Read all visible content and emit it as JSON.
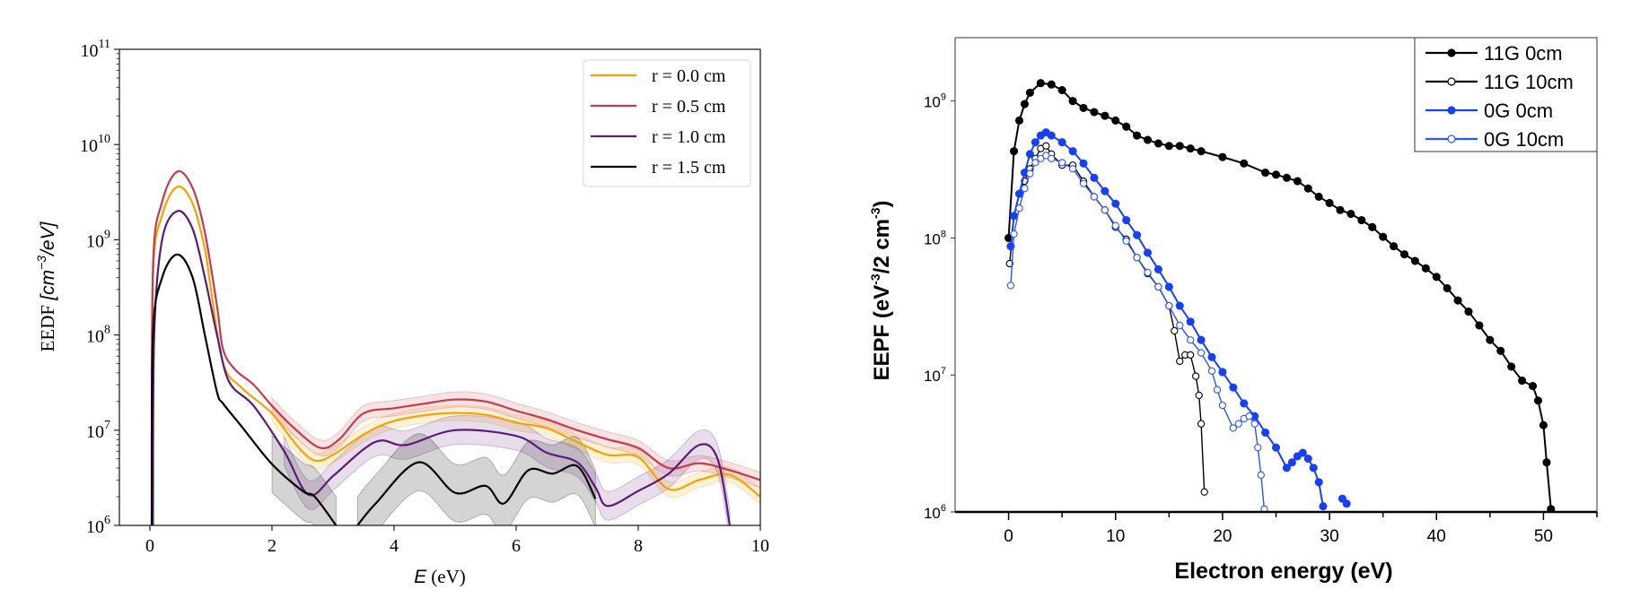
{
  "chart_data": [
    {
      "type": "line",
      "xlabel": "E (eV)",
      "xlabel_italic_part": "E",
      "xlabel_unit": "(eV)",
      "ylabel": "EEDF [cm^-3/eV]",
      "ylabel_text": "EEDF ",
      "ylabel_math_pre": "[cm",
      "ylabel_math_exp": "−3",
      "ylabel_math_post": "/eV]",
      "xlim": [
        -0.5,
        10
      ],
      "ylim": [
        1000000.0,
        100000000000.0
      ],
      "yscale": "log",
      "grid": false,
      "legend_position": "top-right",
      "x_ticks": [
        "0",
        "2",
        "4",
        "6",
        "8",
        "10"
      ],
      "y_ticks": [
        {
          "base": "10",
          "exp": "6"
        },
        {
          "base": "10",
          "exp": "7"
        },
        {
          "base": "10",
          "exp": "8"
        },
        {
          "base": "10",
          "exp": "9"
        },
        {
          "base": "10",
          "exp": "10"
        },
        {
          "base": "10",
          "exp": "11"
        }
      ],
      "band_from_E": 2,
      "series": [
        {
          "name": "r = 0.0 cm",
          "color": "#f5a300",
          "band_decades": 0.08,
          "x": [
            0.03,
            0.05,
            0.2,
            0.45,
            0.7,
            0.9,
            1.0,
            1.2,
            1.5,
            2,
            2.4,
            2.7,
            3.0,
            3.5,
            4,
            4.8,
            5.5,
            6,
            6.5,
            7,
            7.5,
            8,
            8.5,
            9,
            9.5,
            10
          ],
          "y": [
            1000000.0,
            400000000.0,
            1800000000.0,
            3600000000.0,
            2400000000.0,
            800000000.0,
            300000000.0,
            50000000.0,
            28000000.0,
            15000000.0,
            7000000.0,
            4800000.0,
            5500000.0,
            9000000.0,
            12500000.0,
            15000000.0,
            14500000.0,
            12000000.0,
            10500000.0,
            7500000.0,
            5500000.0,
            5200000.0,
            2400000.0,
            3000000.0,
            3400000.0,
            2000000.0
          ]
        },
        {
          "name": "r = 0.5 cm",
          "color": "#c83a4b",
          "band_decades": 0.08,
          "x": [
            0.03,
            0.05,
            0.2,
            0.45,
            0.7,
            0.9,
            1.1,
            1.2,
            1.4,
            1.7,
            2,
            2.4,
            2.8,
            3.1,
            3.5,
            4,
            4.5,
            5,
            5.5,
            6,
            6.5,
            7,
            7.5,
            8,
            8.5,
            9,
            9.5,
            10
          ],
          "y": [
            1000000.0,
            500000000.0,
            2500000000.0,
            5200000000.0,
            3500000000.0,
            1200000000.0,
            200000000.0,
            70000000.0,
            43000000.0,
            30000000.0,
            18000000.0,
            10000000.0,
            6500000.0,
            8000000.0,
            15000000.0,
            17000000.0,
            19000000.0,
            21000000.0,
            20000000.0,
            16000000.0,
            13000000.0,
            10000000.0,
            8000000.0,
            6500000.0,
            4000000.0,
            4500000.0,
            3800000.0,
            3000000.0
          ]
        },
        {
          "name": "r = 1.0 cm",
          "color": "#5b1a78",
          "band_decades": 0.15,
          "x": [
            0.05,
            0.07,
            0.2,
            0.45,
            0.7,
            0.9,
            1.1,
            1.3,
            1.7,
            2.2,
            2.6,
            3,
            3.5,
            3.8,
            4.2,
            5,
            6,
            6.5,
            7,
            7.3,
            7.5,
            8,
            8.5,
            9,
            9.3,
            9.5
          ],
          "y": [
            1000000.0,
            100000000.0,
            1000000000.0,
            2000000000.0,
            1300000000.0,
            400000000.0,
            100000000.0,
            32000000.0,
            18000000.0,
            6000000.0,
            2100000.0,
            3300000.0,
            6300000.0,
            7800000.0,
            7000000.0,
            10000000.0,
            8700000.0,
            5800000.0,
            4600000.0,
            2500000.0,
            1600000.0,
            2300000.0,
            3500000.0,
            7000000.0,
            5000000.0,
            1000000.0
          ]
        },
        {
          "name": "r = 1.5 cm",
          "color": "#000000",
          "band_decades": 0.3,
          "x": [
            0.03,
            0.05,
            0.2,
            0.45,
            0.7,
            0.9,
            1.1,
            1.2,
            1.5,
            2,
            2.5,
            2.7,
            3.05,
            null,
            3.4,
            3.7,
            4.4,
            5,
            5.5,
            5.8,
            6.2,
            6.6,
            7,
            7.3
          ],
          "y": [
            1000000.0,
            100000000.0,
            400000000.0,
            700000000.0,
            400000000.0,
            100000000.0,
            25000000.0,
            19000000.0,
            11000000.0,
            4400000.0,
            2300000.0,
            2000000.0,
            1000000.0,
            null,
            1000000.0,
            1700000.0,
            4600000.0,
            2200000.0,
            2600000.0,
            1700000.0,
            3800000.0,
            3500000.0,
            4200000.0,
            1900000.0
          ]
        }
      ]
    },
    {
      "type": "line",
      "xlabel": "Electron energy (eV)",
      "ylabel": "EEPF (eV-3/2 cm-3)",
      "ylabel_pre": "EEPF (eV",
      "ylabel_exp1": "-3",
      "ylabel_mid": "/2 cm",
      "ylabel_exp2": "-3",
      "ylabel_post": ")",
      "xlim": [
        -5,
        55
      ],
      "ylim": [
        1000000.0,
        2900000000.0
      ],
      "yscale": "log",
      "grid": false,
      "legend_position": "top-right",
      "x_ticks": [
        "0",
        "10",
        "20",
        "30",
        "40",
        "50"
      ],
      "y_ticks": [
        {
          "base": "10",
          "exp": "6"
        },
        {
          "base": "10",
          "exp": "7"
        },
        {
          "base": "10",
          "exp": "8"
        },
        {
          "base": "10",
          "exp": "9"
        }
      ],
      "series": [
        {
          "name": "11G 0cm",
          "color": "#000000",
          "marker": "filled-circle",
          "x": [
            0,
            0.5,
            1,
            1.5,
            2,
            3,
            4,
            5,
            6,
            7,
            8,
            9,
            10,
            11,
            12,
            13,
            14,
            15,
            16,
            17,
            18,
            20,
            22,
            24,
            25,
            26,
            27,
            28,
            29,
            30,
            31,
            32,
            33,
            34,
            35,
            36,
            37,
            38,
            39,
            40,
            41,
            42,
            43,
            44,
            45,
            46,
            47,
            48,
            49,
            49.5,
            50,
            50.3,
            50.7
          ],
          "y": [
            100000000.0,
            430000000.0,
            720000000.0,
            950000000.0,
            1150000000.0,
            1350000000.0,
            1320000000.0,
            1200000000.0,
            1000000000.0,
            890000000.0,
            830000000.0,
            780000000.0,
            720000000.0,
            650000000.0,
            560000000.0,
            520000000.0,
            490000000.0,
            470000000.0,
            470000000.0,
            450000000.0,
            430000000.0,
            390000000.0,
            350000000.0,
            300000000.0,
            290000000.0,
            275000000.0,
            260000000.0,
            230000000.0,
            200000000.0,
            180000000.0,
            160000000.0,
            150000000.0,
            135000000.0,
            120000000.0,
            102000000.0,
            87000000.0,
            76000000.0,
            68000000.0,
            60000000.0,
            52000000.0,
            43000000.0,
            35000000.0,
            29000000.0,
            23000000.0,
            18000000.0,
            15000000.0,
            11500000.0,
            9100000.0,
            8300000.0,
            6500000.0,
            4300000.0,
            2300000.0,
            1050000.0
          ]
        },
        {
          "name": "11G 10cm",
          "color": "#000000",
          "marker": "open-circle",
          "x": [
            0.1,
            0.5,
            1,
            1.5,
            2,
            2.5,
            3,
            3.5,
            4,
            5,
            6,
            7,
            8,
            9,
            10,
            11,
            12,
            13,
            14,
            15,
            15.5,
            16,
            16.5,
            17,
            17.5,
            17.8,
            18,
            18.3
          ],
          "y": [
            65000000.0,
            145000000.0,
            210000000.0,
            260000000.0,
            320000000.0,
            380000000.0,
            450000000.0,
            470000000.0,
            410000000.0,
            340000000.0,
            340000000.0,
            260000000.0,
            200000000.0,
            160000000.0,
            120000000.0,
            98000000.0,
            72000000.0,
            55000000.0,
            44000000.0,
            32000000.0,
            21000000.0,
            12600000.0,
            14000000.0,
            14000000.0,
            9800000.0,
            7100000.0,
            4400000.0,
            1400000.0
          ]
        },
        {
          "name": "0G 0cm",
          "color": "#1740f5",
          "marker": "filled-circle",
          "x": [
            0.2,
            0.5,
            1,
            1.5,
            2,
            2.5,
            3,
            3.5,
            4,
            5,
            6,
            7,
            8,
            9,
            10,
            11,
            12,
            13,
            14,
            15,
            16,
            17,
            18,
            19,
            20,
            21,
            22,
            23,
            24,
            25,
            26,
            26.5,
            27,
            27.5,
            28,
            28.5,
            29,
            29.4,
            null,
            31.2,
            31.6
          ],
          "y": [
            87000000.0,
            145000000.0,
            210000000.0,
            300000000.0,
            410000000.0,
            500000000.0,
            560000000.0,
            590000000.0,
            560000000.0,
            500000000.0,
            430000000.0,
            350000000.0,
            275000000.0,
            220000000.0,
            178000000.0,
            135000000.0,
            105000000.0,
            78000000.0,
            59000000.0,
            44000000.0,
            32000000.0,
            24500000.0,
            18000000.0,
            13500000.0,
            10500000.0,
            8100000.0,
            6200000.0,
            5000000.0,
            3800000.0,
            2950000.0,
            2100000.0,
            2300000.0,
            2550000.0,
            2700000.0,
            2450000.0,
            2100000.0,
            1650000.0,
            1100000.0,
            null,
            1250000.0,
            1150000.0
          ]
        },
        {
          "name": "0G 10cm",
          "color": "#2a55ff",
          "marker": "open-circle",
          "x": [
            0.2,
            0.5,
            1,
            1.5,
            2,
            2.5,
            3,
            3.5,
            4,
            5,
            6,
            7,
            8,
            9,
            10,
            11,
            12,
            13,
            14,
            15,
            16,
            17,
            18,
            19,
            19.5,
            20,
            21,
            21.5,
            22,
            22.5,
            23,
            23.3,
            23.6,
            23.9
          ],
          "y": [
            45000000.0,
            107000000.0,
            165000000.0,
            230000000.0,
            295000000.0,
            355000000.0,
            380000000.0,
            400000000.0,
            380000000.0,
            355000000.0,
            320000000.0,
            250000000.0,
            200000000.0,
            160000000.0,
            123000000.0,
            95000000.0,
            72000000.0,
            56000000.0,
            44000000.0,
            32000000.0,
            23000000.0,
            18000000.0,
            14500000.0,
            10700000.0,
            7800000.0,
            6000000.0,
            4100000.0,
            4400000.0,
            4800000.0,
            5000000.0,
            4400000.0,
            2950000.0,
            1860000.0,
            1050000.0
          ]
        }
      ]
    }
  ]
}
